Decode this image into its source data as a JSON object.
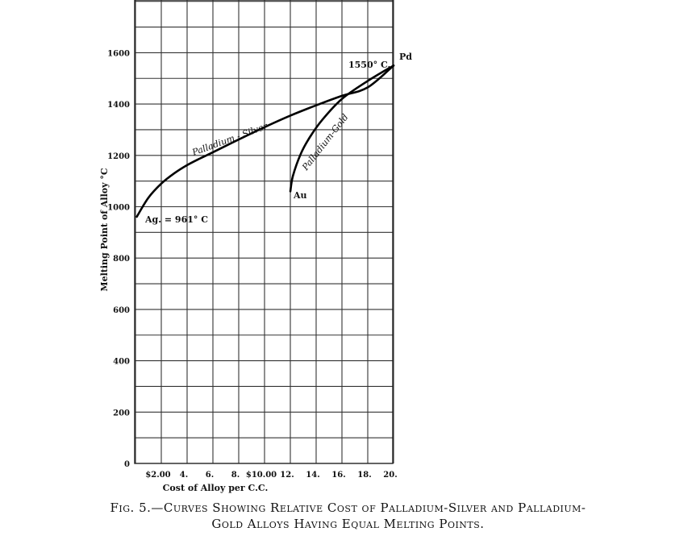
{
  "chart_data": {
    "type": "line",
    "title": "",
    "xlabel": "Cost of Alloy per C.C.",
    "ylabel": "Melting Point of Alloy °C",
    "xlim": [
      0,
      20
    ],
    "ylim": [
      0,
      1700
    ],
    "x_tick_labels": [
      {
        "value": 2,
        "label": "$2.00"
      },
      {
        "value": 4,
        "label": "4."
      },
      {
        "value": 6,
        "label": "6."
      },
      {
        "value": 8,
        "label": "8."
      },
      {
        "value": 10,
        "label": "$10.00"
      },
      {
        "value": 12,
        "label": "12."
      },
      {
        "value": 14,
        "label": "14."
      },
      {
        "value": 16,
        "label": "16."
      },
      {
        "value": 18,
        "label": "18."
      },
      {
        "value": 20,
        "label": "20."
      }
    ],
    "y_tick_labels": [
      {
        "value": 0,
        "label": "0"
      },
      {
        "value": 200,
        "label": "200"
      },
      {
        "value": 400,
        "label": "400"
      },
      {
        "value": 600,
        "label": "600"
      },
      {
        "value": 800,
        "label": "800"
      },
      {
        "value": 1000,
        "label": "1000"
      },
      {
        "value": 1200,
        "label": "1200"
      },
      {
        "value": 1400,
        "label": "1400"
      },
      {
        "value": 1600,
        "label": "1600"
      }
    ],
    "grid": true,
    "series": [
      {
        "name": "Palladium - Silver",
        "x": [
          0.1,
          1,
          2,
          3,
          4,
          5,
          6,
          8,
          10,
          12,
          14,
          16,
          18,
          20
        ],
        "y": [
          961,
          1035,
          1090,
          1130,
          1162,
          1188,
          1212,
          1262,
          1310,
          1355,
          1395,
          1432,
          1465,
          1550
        ]
      },
      {
        "name": "Palladium-Gold",
        "x": [
          12,
          12.2,
          12.8,
          13.5,
          14.5,
          16,
          18,
          20
        ],
        "y": [
          1060,
          1120,
          1205,
          1270,
          1340,
          1420,
          1490,
          1550
        ]
      }
    ],
    "annotations": [
      {
        "text": "Ag. = 961° C",
        "x": 0.1,
        "y": 961
      },
      {
        "text": "Au",
        "x": 12,
        "y": 1060
      },
      {
        "text": "1550° C.",
        "x": 20,
        "y": 1550
      },
      {
        "text": "Pd",
        "x": 20,
        "y": 1550
      }
    ]
  },
  "caption": {
    "line1": "Fig. 5.—Curves Showing Relative Cost of Palladium-Silver and Palladium-",
    "line2": "Gold Alloys Having Equal Melting Points."
  }
}
